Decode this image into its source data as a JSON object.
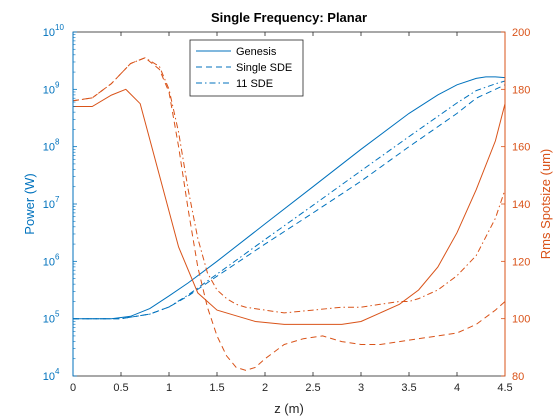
{
  "chart_data": {
    "type": "line",
    "title": "Single Frequency: Planar",
    "xlabel": "z (m)",
    "ylabel_left": "Power (W)",
    "ylabel_right": "Rms Spotsize (um)",
    "xlim": [
      0,
      4.5
    ],
    "ylim_left": [
      10000,
      10000000000
    ],
    "ylim_right": [
      80,
      200
    ],
    "left_scale": "log",
    "grid": false,
    "legend_position": "top-center",
    "colors": {
      "left": "#0072BD",
      "right": "#D95319"
    },
    "x_ticks": [
      "0",
      "0.5",
      "1",
      "1.5",
      "2",
      "2.5",
      "3",
      "3.5",
      "4",
      "4.5"
    ],
    "y_left_ticks": [
      {
        "base": "10",
        "exp": "4",
        "value": 10000
      },
      {
        "base": "10",
        "exp": "5",
        "value": 100000
      },
      {
        "base": "10",
        "exp": "6",
        "value": 1000000
      },
      {
        "base": "10",
        "exp": "7",
        "value": 10000000
      },
      {
        "base": "10",
        "exp": "8",
        "value": 100000000
      },
      {
        "base": "10",
        "exp": "9",
        "value": 1000000000
      },
      {
        "base": "10",
        "exp": "10",
        "value": 10000000000
      }
    ],
    "y_right_ticks": [
      "80",
      "100",
      "120",
      "140",
      "160",
      "180",
      "200"
    ],
    "legend": [
      "Genesis",
      "Single SDE",
      "11 SDE"
    ],
    "series": [
      {
        "name": "Genesis",
        "axis": "left",
        "style": "solid",
        "x": [
          0,
          0.4,
          0.6,
          0.8,
          1.0,
          1.2,
          1.5,
          2.0,
          2.5,
          3.0,
          3.5,
          3.8,
          4.0,
          4.2,
          4.3,
          4.4,
          4.5
        ],
        "y": [
          100000,
          100000,
          110000,
          150000,
          250000,
          420000,
          1000000,
          4500000,
          20000000,
          90000000,
          380000000,
          800000000,
          1200000000,
          1550000000,
          1650000000,
          1650000000,
          1600000000
        ]
      },
      {
        "name": "Single SDE",
        "axis": "left",
        "style": "dashed",
        "x": [
          0,
          0.5,
          0.8,
          1.0,
          1.2,
          1.5,
          2.0,
          2.5,
          3.0,
          3.5,
          4.0,
          4.2,
          4.4,
          4.5
        ],
        "y": [
          100000,
          100000,
          120000,
          160000,
          250000,
          550000,
          2000000,
          7000000,
          25000000,
          100000000,
          380000000,
          700000000,
          1000000000,
          1200000000
        ]
      },
      {
        "name": "11 SDE",
        "axis": "left",
        "style": "dashdot",
        "x": [
          0,
          0.5,
          0.8,
          1.0,
          1.2,
          1.5,
          2.0,
          2.5,
          3.0,
          3.5,
          4.0,
          4.2,
          4.4,
          4.5
        ],
        "y": [
          100000,
          100000,
          120000,
          160000,
          260000,
          600000,
          2400000,
          9500000,
          38000000,
          150000000,
          580000000,
          950000000,
          1250000000,
          1400000000
        ]
      },
      {
        "name": "Genesis",
        "axis": "right",
        "style": "solid",
        "x": [
          0,
          0.2,
          0.4,
          0.55,
          0.7,
          0.9,
          1.1,
          1.3,
          1.5,
          1.7,
          1.9,
          2.2,
          2.5,
          2.8,
          3.0,
          3.2,
          3.4,
          3.6,
          3.8,
          4.0,
          4.2,
          4.4,
          4.5
        ],
        "y": [
          174,
          174,
          178,
          180,
          175,
          150,
          125,
          109,
          103,
          101,
          99,
          98,
          98,
          98,
          99,
          102,
          105,
          110,
          118,
          130,
          145,
          162,
          175
        ]
      },
      {
        "name": "Single SDE",
        "axis": "right",
        "style": "dashed",
        "x": [
          0,
          0.2,
          0.4,
          0.6,
          0.75,
          0.9,
          1.0,
          1.1,
          1.2,
          1.3,
          1.4,
          1.5,
          1.6,
          1.7,
          1.8,
          1.9,
          2.0,
          2.2,
          2.4,
          2.6,
          2.8,
          3.0,
          3.2,
          3.4,
          3.6,
          3.8,
          4.0,
          4.2,
          4.4,
          4.5
        ],
        "y": [
          176,
          177,
          182,
          189,
          191,
          187,
          179,
          160,
          138,
          118,
          104,
          94,
          87,
          83,
          82,
          83,
          86,
          91,
          93,
          94,
          92,
          91,
          91,
          92,
          93,
          94,
          95,
          98,
          103,
          106
        ]
      },
      {
        "name": "11 SDE",
        "axis": "right",
        "style": "dashdot",
        "x": [
          0,
          0.2,
          0.4,
          0.6,
          0.75,
          0.9,
          1.0,
          1.1,
          1.2,
          1.3,
          1.4,
          1.5,
          1.6,
          1.7,
          1.8,
          2.0,
          2.2,
          2.5,
          2.8,
          3.0,
          3.2,
          3.4,
          3.5,
          3.6,
          3.8,
          4.0,
          4.2,
          4.4,
          4.5
        ],
        "y": [
          176,
          177,
          182,
          189,
          191,
          188,
          180,
          165,
          145,
          128,
          116,
          110,
          107,
          105,
          104,
          103,
          102,
          103,
          104,
          104,
          105,
          106,
          106,
          107,
          110,
          115,
          122,
          135,
          145
        ]
      }
    ]
  }
}
